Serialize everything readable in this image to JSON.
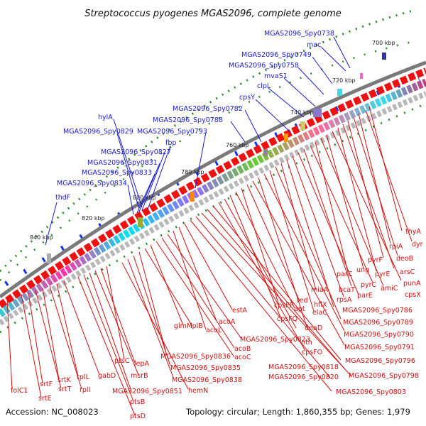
{
  "title": "Streptococcus pyogenes MGAS2096, complete genome",
  "footer": {
    "accession": "Accession: NC_008023",
    "summary": "Topology: circular; Length: 1,860,355 bp; Genes: 1,979"
  },
  "kbp_labels": [
    "700 kbp",
    "720 kbp",
    "740 kbp",
    "760 kbp",
    "780 kbp",
    "800 kbp",
    "820 kbp",
    "840 kbp"
  ],
  "blue_labels": [
    "MGAS2096_Spy0738",
    "mac",
    "MGAS2096_Spy0749",
    "MGAS2096_Spy0758",
    "mvaS1",
    "clpL",
    "cpsY",
    "MGAS2096_Spy0782",
    "MGAS2096_Spy0788",
    "MGAS2096_Spy0793",
    "hylA",
    "MGAS2096_Spy0829",
    "fbp",
    "MGAS2096_Spy0827",
    "MGAS2096_Spy0831",
    "MGAS2096_Spy0833",
    "MGAS2096_Spy0834",
    "thdF"
  ],
  "red_labels": [
    "thyA",
    "dyr",
    "rpiA",
    "deoB",
    "pyrF",
    "arsC",
    "pyrE",
    "punA",
    "ung",
    "amiC",
    "cpsX",
    "parC",
    "pyrC",
    "bcaT",
    "parE",
    "rpsA",
    "miaA",
    "MGAS2096_Spy0786",
    "hflX",
    "MGAS2096_Spy0789",
    "elaC",
    "MGAS2096_Spy0790",
    "dnaD",
    "MGAS2096_Spy0791",
    "red",
    "cpsFP",
    "apt",
    "cpsFQ",
    "nth",
    "cpsFO",
    "MGAS2096_Spy0796",
    "MGAS2096_Spy0818",
    "MGAS2096_Spy0798",
    "MGAS2096_Spy0820",
    "MGAS2096_Spy0803",
    "estA",
    "acoA",
    "acoL",
    "MGAS2096_Spy0823",
    "acoB",
    "acoC",
    "glmM",
    "lplB",
    "MGAS2096_Spy0836",
    "MGAS2096_Spy0835",
    "MGAS2096_Spy0838",
    "hemN",
    "ptsC",
    "lepA",
    "msrB",
    "MGAS2096_Spy0851",
    "ptsB",
    "ptsD",
    "gabD",
    "rplL",
    "rplI",
    "srtK",
    "srtT",
    "srtF",
    "srtE",
    "folC1"
  ],
  "colors": {
    "forward_gene": "#ee1111",
    "reverse_gene": "#1133ee",
    "backbone": "#777777",
    "gc_skew": "#3a9a3a",
    "label_blue": "#1a1ad0",
    "label_red": "#d01010"
  }
}
